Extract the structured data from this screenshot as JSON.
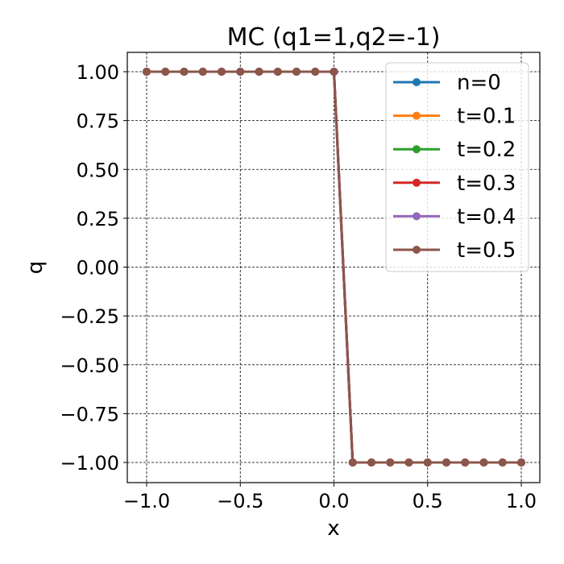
{
  "chart_data": {
    "type": "line",
    "title": "MC (q1=1,q2=-1)",
    "xlabel": "x",
    "ylabel": "q",
    "xlim": [
      -1.1,
      1.1
    ],
    "ylim": [
      -1.1,
      1.1
    ],
    "grid": true,
    "legend_position": "upper right",
    "xticks": [
      -1.0,
      -0.5,
      0.0,
      0.5,
      1.0
    ],
    "xtick_labels": [
      "−1.0",
      "−0.5",
      "0.0",
      "0.5",
      "1.0"
    ],
    "yticks": [
      1.0,
      0.75,
      0.5,
      0.25,
      0.0,
      -0.25,
      -0.5,
      -0.75,
      -1.0
    ],
    "ytick_labels": [
      "1.00",
      "0.75",
      "0.50",
      "0.25",
      "0.00",
      "−0.25",
      "−0.50",
      "−0.75",
      "−1.00"
    ],
    "x": [
      -1.0,
      -0.9,
      -0.8,
      -0.7,
      -0.6,
      -0.5,
      -0.4,
      -0.3,
      -0.2,
      -0.1,
      0.0,
      0.1,
      0.2,
      0.3,
      0.4,
      0.5,
      0.6,
      0.7,
      0.8,
      0.9,
      1.0
    ],
    "series": [
      {
        "name": "n=0",
        "color": "#1f77b4",
        "values": [
          1,
          1,
          1,
          1,
          1,
          1,
          1,
          1,
          1,
          1,
          1,
          -1,
          -1,
          -1,
          -1,
          -1,
          -1,
          -1,
          -1,
          -1,
          -1
        ]
      },
      {
        "name": "t=0.1",
        "color": "#ff7f0e",
        "values": [
          1,
          1,
          1,
          1,
          1,
          1,
          1,
          1,
          1,
          1,
          1,
          -1,
          -1,
          -1,
          -1,
          -1,
          -1,
          -1,
          -1,
          -1,
          -1
        ]
      },
      {
        "name": "t=0.2",
        "color": "#2ca02c",
        "values": [
          1,
          1,
          1,
          1,
          1,
          1,
          1,
          1,
          1,
          1,
          1,
          -1,
          -1,
          -1,
          -1,
          -1,
          -1,
          -1,
          -1,
          -1,
          -1
        ]
      },
      {
        "name": "t=0.3",
        "color": "#d62728",
        "values": [
          1,
          1,
          1,
          1,
          1,
          1,
          1,
          1,
          1,
          1,
          1,
          -1,
          -1,
          -1,
          -1,
          -1,
          -1,
          -1,
          -1,
          -1,
          -1
        ]
      },
      {
        "name": "t=0.4",
        "color": "#9467bd",
        "values": [
          1,
          1,
          1,
          1,
          1,
          1,
          1,
          1,
          1,
          1,
          1,
          -1,
          -1,
          -1,
          -1,
          -1,
          -1,
          -1,
          -1,
          -1,
          -1
        ]
      },
      {
        "name": "t=0.5",
        "color": "#8c564b",
        "values": [
          1,
          1,
          1,
          1,
          1,
          1,
          1,
          1,
          1,
          1,
          1,
          -1,
          -1,
          -1,
          -1,
          -1,
          -1,
          -1,
          -1,
          -1,
          -1
        ]
      }
    ]
  }
}
